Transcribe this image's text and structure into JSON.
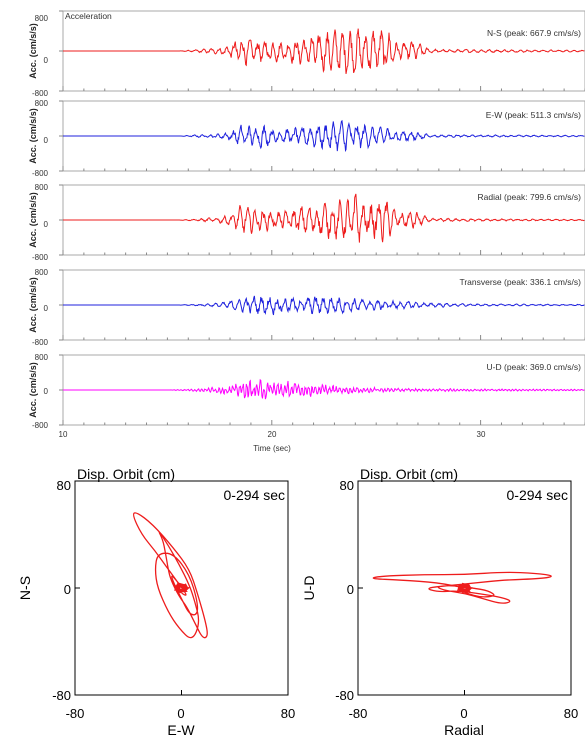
{
  "chart_data": [
    {
      "type": "line",
      "title": "Acceleration",
      "xlabel": "Time (sec)",
      "xlim": [
        10,
        35
      ],
      "x_ticks": [
        "10",
        "20",
        "30"
      ],
      "ylim": [
        -800,
        800
      ],
      "y_ticks": [
        "800",
        "0",
        "-800"
      ],
      "ylabel": "Acc. (cm/s/s)",
      "series": [
        {
          "name": "N-S",
          "peak_label": "N-S (peak: 667.9 cm/s/s)",
          "peak": 667.9,
          "color": "#ee1c1c",
          "profile": [
            [
              10,
              0
            ],
            [
              15.5,
              0
            ],
            [
              16.5,
              40
            ],
            [
              17.5,
              80
            ],
            [
              18,
              160
            ],
            [
              18.5,
              400
            ],
            [
              19,
              280
            ],
            [
              19.5,
              320
            ],
            [
              20.5,
              250
            ],
            [
              21,
              300
            ],
            [
              21.5,
              380
            ],
            [
              22,
              420
            ],
            [
              22.7,
              560
            ],
            [
              23.3,
              500
            ],
            [
              23.7,
              600
            ],
            [
              24.2,
              580
            ],
            [
              25,
              520
            ],
            [
              25.5,
              640
            ],
            [
              26,
              200
            ],
            [
              26.8,
              280
            ],
            [
              27.5,
              50
            ],
            [
              35,
              20
            ]
          ]
        },
        {
          "name": "E-W",
          "peak_label": "E-W (peak: 511.3 cm/s/s)",
          "peak": 511.3,
          "color": "#1f22dd",
          "profile": [
            [
              10,
              0
            ],
            [
              15.5,
              0
            ],
            [
              16.5,
              40
            ],
            [
              17.5,
              70
            ],
            [
              18,
              150
            ],
            [
              18.5,
              300
            ],
            [
              19.5,
              330
            ],
            [
              20.5,
              200
            ],
            [
              21.5,
              300
            ],
            [
              22.5,
              380
            ],
            [
              23.2,
              480
            ],
            [
              23.8,
              420
            ],
            [
              24.3,
              380
            ],
            [
              25,
              240
            ],
            [
              25.6,
              300
            ],
            [
              26.2,
              160
            ],
            [
              26.8,
              200
            ],
            [
              27.5,
              40
            ],
            [
              35,
              20
            ]
          ]
        },
        {
          "name": "Radial",
          "peak_label": "Radial (peak: 799.6 cm/s/s)",
          "peak": 799.6,
          "color": "#ee1c1c",
          "profile": [
            [
              10,
              0
            ],
            [
              15.5,
              0
            ],
            [
              16.5,
              40
            ],
            [
              17.5,
              90
            ],
            [
              18,
              160
            ],
            [
              18.5,
              420
            ],
            [
              19.5,
              320
            ],
            [
              20.5,
              260
            ],
            [
              21.5,
              420
            ],
            [
              22.5,
              520
            ],
            [
              23,
              640
            ],
            [
              23.5,
              520
            ],
            [
              24,
              780
            ],
            [
              24.5,
              500
            ],
            [
              25.4,
              640
            ],
            [
              26,
              220
            ],
            [
              26.8,
              280
            ],
            [
              27.5,
              50
            ],
            [
              35,
              20
            ]
          ]
        },
        {
          "name": "Transverse",
          "peak_label": "Transverse (peak: 336.1 cm/s/s)",
          "peak": 336.1,
          "color": "#1f22dd",
          "profile": [
            [
              10,
              0
            ],
            [
              15.5,
              0
            ],
            [
              16.5,
              30
            ],
            [
              17.5,
              60
            ],
            [
              18,
              120
            ],
            [
              19,
              260
            ],
            [
              19.8,
              320
            ],
            [
              20.5,
              220
            ],
            [
              21.5,
              240
            ],
            [
              22.5,
              300
            ],
            [
              23,
              260
            ],
            [
              24,
              200
            ],
            [
              25,
              160
            ],
            [
              26,
              120
            ],
            [
              27,
              90
            ],
            [
              28.5,
              50
            ],
            [
              30,
              30
            ],
            [
              35,
              20
            ]
          ]
        },
        {
          "name": "U-D",
          "peak_label": "U-D (peak: 369.0 cm/s/s)",
          "peak": 369.0,
          "color": "#ff00ff",
          "profile": [
            [
              10,
              0
            ],
            [
              15,
              0
            ],
            [
              16,
              30
            ],
            [
              17,
              70
            ],
            [
              18,
              160
            ],
            [
              19,
              330
            ],
            [
              20,
              350
            ],
            [
              21,
              250
            ],
            [
              22,
              210
            ],
            [
              23,
              150
            ],
            [
              24,
              110
            ],
            [
              25,
              80
            ],
            [
              26,
              60
            ],
            [
              27,
              50
            ],
            [
              29,
              40
            ],
            [
              35,
              25
            ]
          ]
        }
      ]
    },
    {
      "type": "line",
      "title": "Disp. Orbit (cm)",
      "annotation": "0-294 sec",
      "xlabel": "E-W",
      "ylabel": "N-S",
      "xlim": [
        -80,
        80
      ],
      "ylim": [
        -80,
        80
      ],
      "x_ticks": [
        "-80",
        "0",
        "80"
      ],
      "y_ticks": [
        "80",
        "0",
        "-80"
      ],
      "color": "#ee1c1c",
      "path": [
        [
          0,
          0
        ],
        [
          -4,
          6
        ],
        [
          -10,
          14
        ],
        [
          -20,
          28
        ],
        [
          -30,
          40
        ],
        [
          -37,
          55
        ],
        [
          -34,
          57
        ],
        [
          -22,
          48
        ],
        [
          -6,
          30
        ],
        [
          6,
          14
        ],
        [
          12,
          -4
        ],
        [
          18,
          -25
        ],
        [
          20,
          -36
        ],
        [
          16,
          -38
        ],
        [
          10,
          -26
        ],
        [
          4,
          -14
        ],
        [
          -2,
          -6
        ],
        [
          -8,
          6
        ],
        [
          -10,
          14
        ],
        [
          -12,
          26
        ],
        [
          -14,
          36
        ],
        [
          -18,
          44
        ],
        [
          -10,
          32
        ],
        [
          -2,
          18
        ],
        [
          6,
          2
        ],
        [
          10,
          -10
        ],
        [
          14,
          -26
        ],
        [
          8,
          -40
        ],
        [
          -2,
          -30
        ],
        [
          -10,
          -18
        ],
        [
          -18,
          0
        ],
        [
          -20,
          14
        ],
        [
          -18,
          26
        ],
        [
          -6,
          26
        ],
        [
          6,
          10
        ],
        [
          12,
          -10
        ],
        [
          12,
          -20
        ],
        [
          6,
          -20
        ],
        [
          0,
          -8
        ],
        [
          -6,
          4
        ],
        [
          -8,
          10
        ],
        [
          -4,
          6
        ],
        [
          2,
          -2
        ],
        [
          4,
          -6
        ],
        [
          0,
          -4
        ],
        [
          -4,
          2
        ],
        [
          -2,
          4
        ],
        [
          0,
          0
        ]
      ]
    },
    {
      "type": "line",
      "title": "Disp. Orbit (cm)",
      "annotation": "0-294 sec",
      "xlabel": "Radial",
      "ylabel": "U-D",
      "xlim": [
        -80,
        80
      ],
      "ylim": [
        -80,
        80
      ],
      "x_ticks": [
        "-80",
        "0",
        "80"
      ],
      "y_ticks": [
        "80",
        "0",
        "-80"
      ],
      "color": "#ee1c1c",
      "path": [
        [
          0,
          0
        ],
        [
          -20,
          4
        ],
        [
          -48,
          6
        ],
        [
          -72,
          7
        ],
        [
          -62,
          9
        ],
        [
          -30,
          10
        ],
        [
          0,
          10
        ],
        [
          30,
          12
        ],
        [
          54,
          11
        ],
        [
          68,
          9
        ],
        [
          58,
          7
        ],
        [
          30,
          6
        ],
        [
          10,
          4
        ],
        [
          -10,
          2
        ],
        [
          -30,
          0
        ],
        [
          -20,
          -3
        ],
        [
          -6,
          -2
        ],
        [
          10,
          -4
        ],
        [
          28,
          -7
        ],
        [
          36,
          -10
        ],
        [
          28,
          -12
        ],
        [
          14,
          -8
        ],
        [
          0,
          -4
        ],
        [
          -14,
          -2
        ],
        [
          -22,
          1
        ],
        [
          -10,
          2
        ],
        [
          6,
          0
        ],
        [
          18,
          -2
        ],
        [
          24,
          -6
        ],
        [
          12,
          -7
        ],
        [
          2,
          -4
        ],
        [
          -6,
          -1
        ],
        [
          -2,
          1
        ],
        [
          0,
          0
        ]
      ]
    }
  ]
}
